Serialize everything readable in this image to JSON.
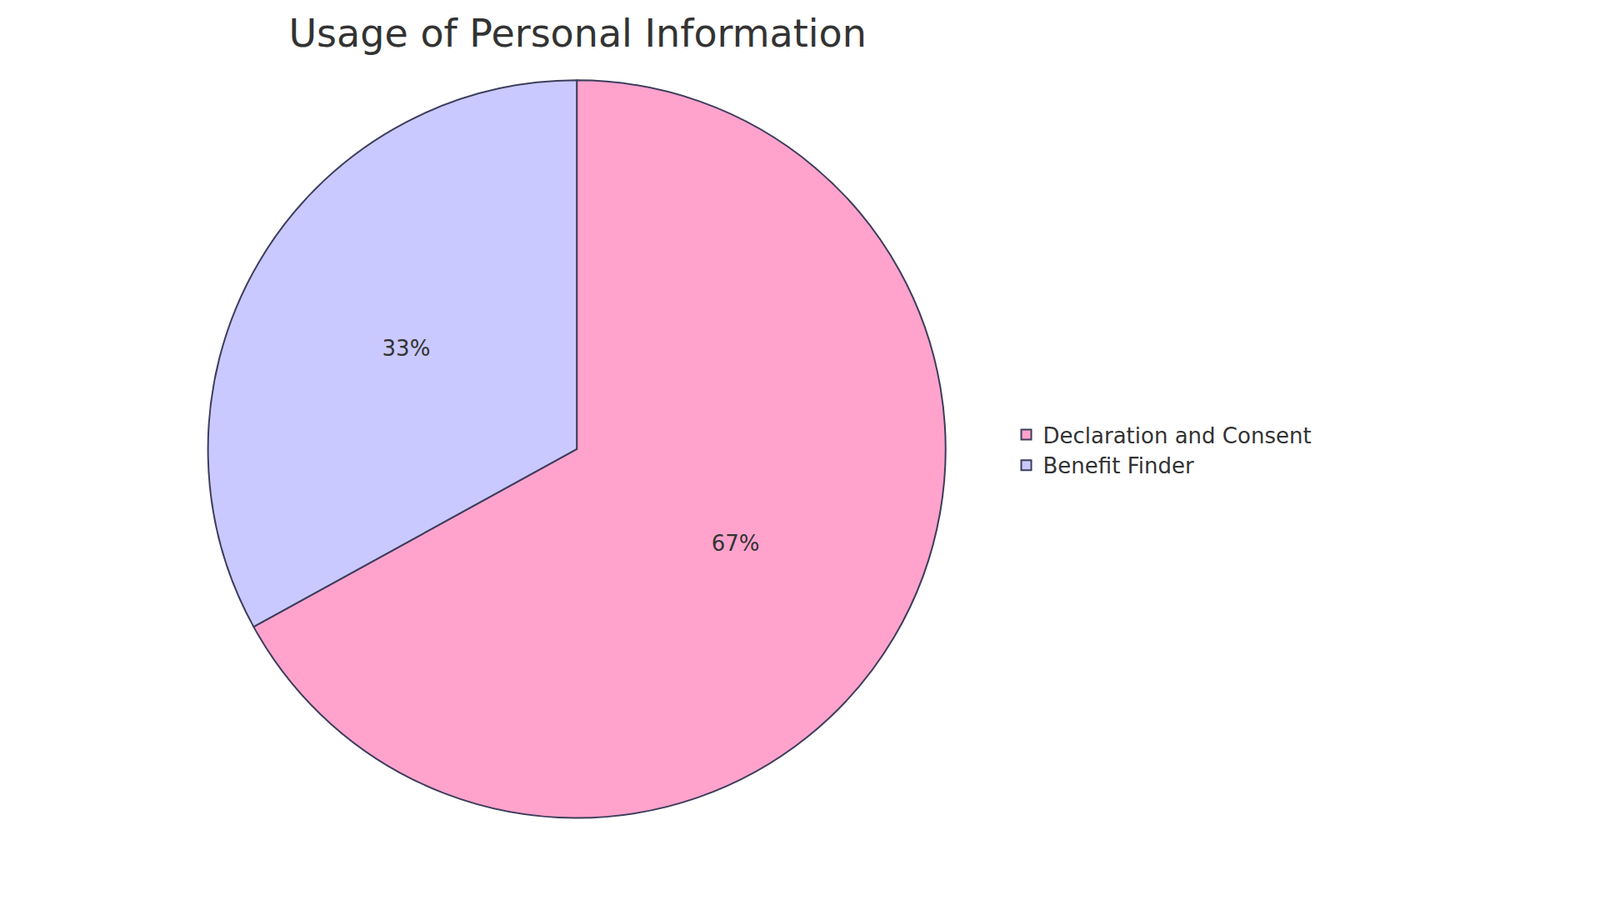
{
  "chart_data": {
    "type": "pie",
    "title": "Usage of Personal Information",
    "categories": [
      "Declaration and Consent",
      "Benefit Finder"
    ],
    "values": [
      67,
      33
    ],
    "value_labels": [
      "67%",
      "33%"
    ],
    "colors": [
      "#ffa3cd",
      "#c9c9ff"
    ],
    "data_labels": true,
    "legend": "right"
  }
}
